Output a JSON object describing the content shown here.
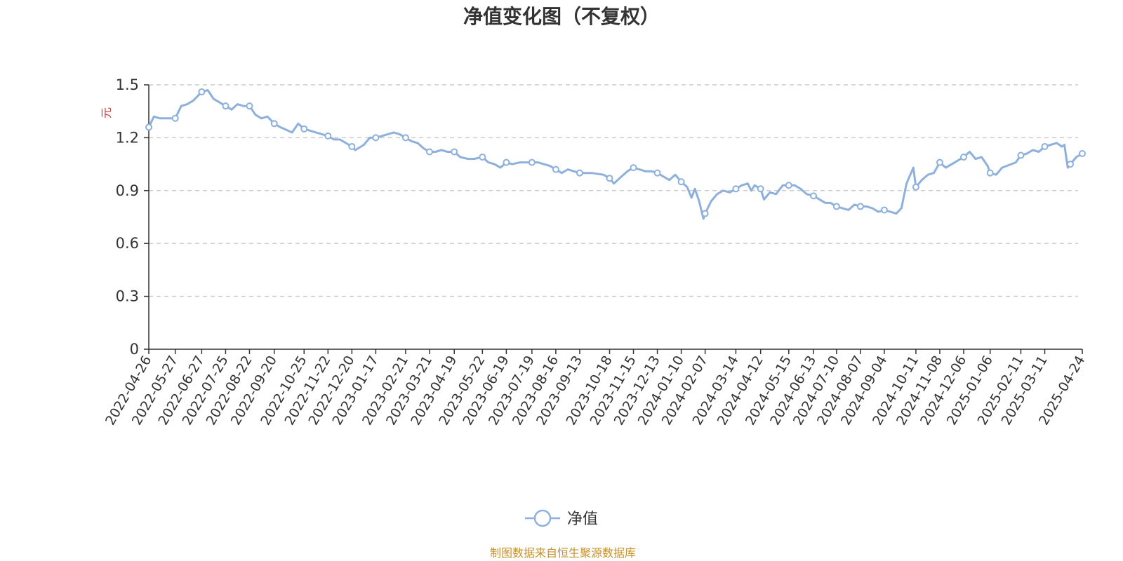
{
  "chart_data": {
    "type": "line",
    "title": "净值变化图（不复权）",
    "ylabel": "元",
    "ylim": [
      0,
      1.5
    ],
    "y_ticks": [
      "0",
      "0.3",
      "0.6",
      "0.9",
      "1.2",
      "1.5"
    ],
    "y_tick_values": [
      0,
      0.3,
      0.6,
      0.9,
      1.2,
      1.5
    ],
    "grid": true,
    "legend_position": "bottom",
    "x_tick_labels": [
      "2022-04-26",
      "2022-05-27",
      "2022-06-27",
      "2022-07-25",
      "2022-08-22",
      "2022-09-20",
      "2022-10-25",
      "2022-11-22",
      "2022-12-20",
      "2023-01-17",
      "2023-02-21",
      "2023-03-21",
      "2023-04-19",
      "2023-05-22",
      "2023-06-19",
      "2023-07-19",
      "2023-08-16",
      "2023-09-13",
      "2023-10-18",
      "2023-11-15",
      "2023-12-13",
      "2024-01-10",
      "2024-02-07",
      "2024-03-14",
      "2024-04-12",
      "2024-05-15",
      "2024-06-13",
      "2024-07-10",
      "2024-08-07",
      "2024-09-04",
      "2024-10-11",
      "2024-11-08",
      "2024-12-06",
      "2025-01-06",
      "2025-02-11",
      "2025-03-11",
      "2025-04-24"
    ],
    "series": [
      {
        "name": "净值",
        "color": "#8eb0dc",
        "points": [
          [
            "2022-04-26",
            1.26
          ],
          [
            "2022-05-02",
            1.32
          ],
          [
            "2022-05-09",
            1.31
          ],
          [
            "2022-05-16",
            1.31
          ],
          [
            "2022-05-27",
            1.31
          ],
          [
            "2022-06-03",
            1.38
          ],
          [
            "2022-06-10",
            1.39
          ],
          [
            "2022-06-17",
            1.41
          ],
          [
            "2022-06-27",
            1.46
          ],
          [
            "2022-07-04",
            1.47
          ],
          [
            "2022-07-11",
            1.42
          ],
          [
            "2022-07-18",
            1.4
          ],
          [
            "2022-07-25",
            1.38
          ],
          [
            "2022-08-01",
            1.36
          ],
          [
            "2022-08-08",
            1.39
          ],
          [
            "2022-08-15",
            1.38
          ],
          [
            "2022-08-22",
            1.38
          ],
          [
            "2022-08-29",
            1.33
          ],
          [
            "2022-09-05",
            1.31
          ],
          [
            "2022-09-12",
            1.32
          ],
          [
            "2022-09-20",
            1.28
          ],
          [
            "2022-09-27",
            1.26
          ],
          [
            "2022-10-11",
            1.23
          ],
          [
            "2022-10-18",
            1.28
          ],
          [
            "2022-10-25",
            1.25
          ],
          [
            "2022-11-01",
            1.24
          ],
          [
            "2022-11-08",
            1.23
          ],
          [
            "2022-11-15",
            1.22
          ],
          [
            "2022-11-22",
            1.21
          ],
          [
            "2022-11-29",
            1.19
          ],
          [
            "2022-12-06",
            1.19
          ],
          [
            "2022-12-13",
            1.17
          ],
          [
            "2022-12-20",
            1.15
          ],
          [
            "2022-12-24",
            1.13
          ],
          [
            "2023-01-03",
            1.16
          ],
          [
            "2023-01-10",
            1.2
          ],
          [
            "2023-01-17",
            1.2
          ],
          [
            "2023-01-31",
            1.22
          ],
          [
            "2023-02-07",
            1.23
          ],
          [
            "2023-02-14",
            1.22
          ],
          [
            "2023-02-21",
            1.2
          ],
          [
            "2023-02-28",
            1.18
          ],
          [
            "2023-03-07",
            1.17
          ],
          [
            "2023-03-14",
            1.14
          ],
          [
            "2023-03-21",
            1.12
          ],
          [
            "2023-03-28",
            1.12
          ],
          [
            "2023-04-04",
            1.13
          ],
          [
            "2023-04-11",
            1.12
          ],
          [
            "2023-04-19",
            1.12
          ],
          [
            "2023-04-26",
            1.09
          ],
          [
            "2023-05-05",
            1.08
          ],
          [
            "2023-05-12",
            1.08
          ],
          [
            "2023-05-22",
            1.09
          ],
          [
            "2023-05-29",
            1.06
          ],
          [
            "2023-06-05",
            1.05
          ],
          [
            "2023-06-12",
            1.03
          ],
          [
            "2023-06-19",
            1.06
          ],
          [
            "2023-06-26",
            1.05
          ],
          [
            "2023-07-05",
            1.06
          ],
          [
            "2023-07-12",
            1.06
          ],
          [
            "2023-07-19",
            1.06
          ],
          [
            "2023-07-26",
            1.06
          ],
          [
            "2023-08-02",
            1.05
          ],
          [
            "2023-08-09",
            1.04
          ],
          [
            "2023-08-16",
            1.02
          ],
          [
            "2023-08-23",
            1.0
          ],
          [
            "2023-08-30",
            1.02
          ],
          [
            "2023-09-06",
            1.01
          ],
          [
            "2023-09-13",
            1.0
          ],
          [
            "2023-09-20",
            1.0
          ],
          [
            "2023-09-27",
            1.0
          ],
          [
            "2023-10-11",
            0.99
          ],
          [
            "2023-10-18",
            0.97
          ],
          [
            "2023-10-23",
            0.94
          ],
          [
            "2023-11-01",
            0.98
          ],
          [
            "2023-11-08",
            1.01
          ],
          [
            "2023-11-15",
            1.03
          ],
          [
            "2023-11-22",
            1.02
          ],
          [
            "2023-11-29",
            1.01
          ],
          [
            "2023-12-06",
            1.01
          ],
          [
            "2023-12-13",
            1.0
          ],
          [
            "2023-12-20",
            0.98
          ],
          [
            "2023-12-27",
            0.96
          ],
          [
            "2024-01-03",
            0.99
          ],
          [
            "2024-01-10",
            0.95
          ],
          [
            "2024-01-17",
            0.92
          ],
          [
            "2024-01-22",
            0.86
          ],
          [
            "2024-01-26",
            0.91
          ],
          [
            "2024-01-31",
            0.84
          ],
          [
            "2024-02-05",
            0.74
          ],
          [
            "2024-02-07",
            0.77
          ],
          [
            "2024-02-14",
            0.84
          ],
          [
            "2024-02-21",
            0.88
          ],
          [
            "2024-02-28",
            0.9
          ],
          [
            "2024-03-07",
            0.89
          ],
          [
            "2024-03-14",
            0.91
          ],
          [
            "2024-03-21",
            0.93
          ],
          [
            "2024-03-28",
            0.94
          ],
          [
            "2024-04-01",
            0.9
          ],
          [
            "2024-04-05",
            0.93
          ],
          [
            "2024-04-12",
            0.91
          ],
          [
            "2024-04-16",
            0.85
          ],
          [
            "2024-04-23",
            0.89
          ],
          [
            "2024-04-30",
            0.88
          ],
          [
            "2024-05-08",
            0.93
          ],
          [
            "2024-05-15",
            0.93
          ],
          [
            "2024-05-22",
            0.93
          ],
          [
            "2024-05-29",
            0.91
          ],
          [
            "2024-06-05",
            0.88
          ],
          [
            "2024-06-13",
            0.87
          ],
          [
            "2024-06-20",
            0.85
          ],
          [
            "2024-06-27",
            0.83
          ],
          [
            "2024-07-03",
            0.83
          ],
          [
            "2024-07-10",
            0.81
          ],
          [
            "2024-07-17",
            0.8
          ],
          [
            "2024-07-24",
            0.79
          ],
          [
            "2024-07-31",
            0.82
          ],
          [
            "2024-08-07",
            0.81
          ],
          [
            "2024-08-14",
            0.81
          ],
          [
            "2024-08-21",
            0.8
          ],
          [
            "2024-08-28",
            0.78
          ],
          [
            "2024-09-04",
            0.79
          ],
          [
            "2024-09-11",
            0.78
          ],
          [
            "2024-09-18",
            0.77
          ],
          [
            "2024-09-24",
            0.8
          ],
          [
            "2024-09-27",
            0.87
          ],
          [
            "2024-09-30",
            0.94
          ],
          [
            "2024-10-08",
            1.03
          ],
          [
            "2024-10-11",
            0.92
          ],
          [
            "2024-10-18",
            0.96
          ],
          [
            "2024-10-25",
            0.99
          ],
          [
            "2024-11-01",
            1.0
          ],
          [
            "2024-11-08",
            1.06
          ],
          [
            "2024-11-15",
            1.03
          ],
          [
            "2024-11-22",
            1.05
          ],
          [
            "2024-11-29",
            1.07
          ],
          [
            "2024-12-06",
            1.09
          ],
          [
            "2024-12-13",
            1.12
          ],
          [
            "2024-12-20",
            1.08
          ],
          [
            "2024-12-27",
            1.09
          ],
          [
            "2025-01-03",
            1.04
          ],
          [
            "2025-01-06",
            1.0
          ],
          [
            "2025-01-13",
            0.99
          ],
          [
            "2025-01-20",
            1.03
          ],
          [
            "2025-02-05",
            1.06
          ],
          [
            "2025-02-11",
            1.1
          ],
          [
            "2025-02-18",
            1.11
          ],
          [
            "2025-02-25",
            1.13
          ],
          [
            "2025-03-04",
            1.12
          ],
          [
            "2025-03-11",
            1.15
          ],
          [
            "2025-03-18",
            1.16
          ],
          [
            "2025-03-25",
            1.17
          ],
          [
            "2025-03-31",
            1.15
          ],
          [
            "2025-04-03",
            1.16
          ],
          [
            "2025-04-07",
            1.03
          ],
          [
            "2025-04-10",
            1.05
          ],
          [
            "2025-04-17",
            1.09
          ],
          [
            "2025-04-24",
            1.11
          ]
        ],
        "markers": [
          "2022-04-26",
          "2022-05-27",
          "2022-06-27",
          "2022-07-25",
          "2022-08-22",
          "2022-09-20",
          "2022-10-25",
          "2022-11-22",
          "2022-12-20",
          "2023-01-17",
          "2023-02-21",
          "2023-03-21",
          "2023-04-19",
          "2023-05-22",
          "2023-06-19",
          "2023-07-19",
          "2023-08-16",
          "2023-09-13",
          "2023-10-18",
          "2023-11-15",
          "2023-12-13",
          "2024-01-10",
          "2024-02-07",
          "2024-03-14",
          "2024-04-12",
          "2024-05-15",
          "2024-06-13",
          "2024-07-10",
          "2024-08-07",
          "2024-09-04",
          "2024-10-11",
          "2024-11-08",
          "2024-12-06",
          "2025-01-06",
          "2025-02-11",
          "2025-03-11",
          "2025-04-10",
          "2025-04-24"
        ]
      }
    ]
  },
  "source_text": "制图数据来自恒生聚源数据库",
  "colors": {
    "line": "#8eb0dc",
    "unit_label": "#e03030",
    "source_text": "#c8902a",
    "grid": "#cccccc",
    "axis": "#333333"
  }
}
